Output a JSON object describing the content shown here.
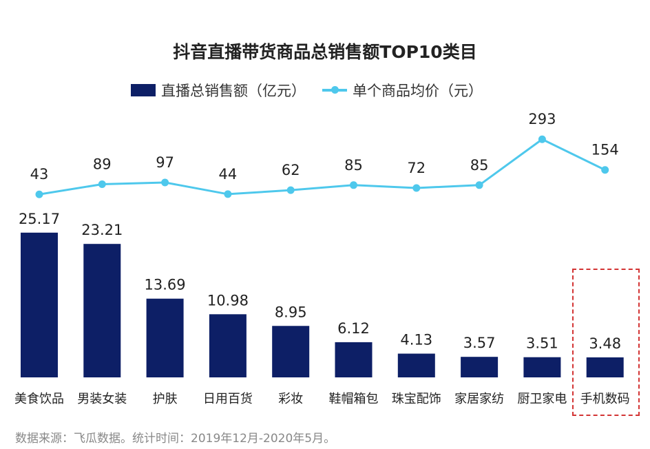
{
  "chart_data": {
    "type": "bar+line",
    "title": "抖音直播带货商品总销售额TOP10类目",
    "categories": [
      "美食饮品",
      "男装女装",
      "护肤",
      "日用百货",
      "彩妆",
      "鞋帽箱包",
      "珠宝配饰",
      "家居家纺",
      "厨卫家电",
      "手机数码"
    ],
    "series": [
      {
        "name": "直播总销售额（亿元）",
        "type": "bar",
        "color": "#0d1f66",
        "values": [
          25.17,
          23.21,
          13.69,
          10.98,
          8.95,
          6.12,
          4.13,
          3.57,
          3.51,
          3.48
        ],
        "labels": [
          "25.17",
          "23.21",
          "13.69",
          "10.98",
          "8.95",
          "6.12",
          "4.13",
          "3.57",
          "3.51",
          "3.48"
        ]
      },
      {
        "name": "单个商品均价（元）",
        "type": "line",
        "color": "#4ec8ec",
        "values": [
          43,
          89,
          97,
          44,
          62,
          85,
          72,
          85,
          293,
          154
        ],
        "labels": [
          "43",
          "89",
          "97",
          "44",
          "62",
          "85",
          "72",
          "85",
          "293",
          "154"
        ]
      }
    ],
    "highlighted_category": "手机数码",
    "highlight_color": "#d33333",
    "legend_position": "top",
    "grid": false,
    "source": "数据来源：飞瓜数据。统计时间：2019年12月-2020年5月。"
  }
}
